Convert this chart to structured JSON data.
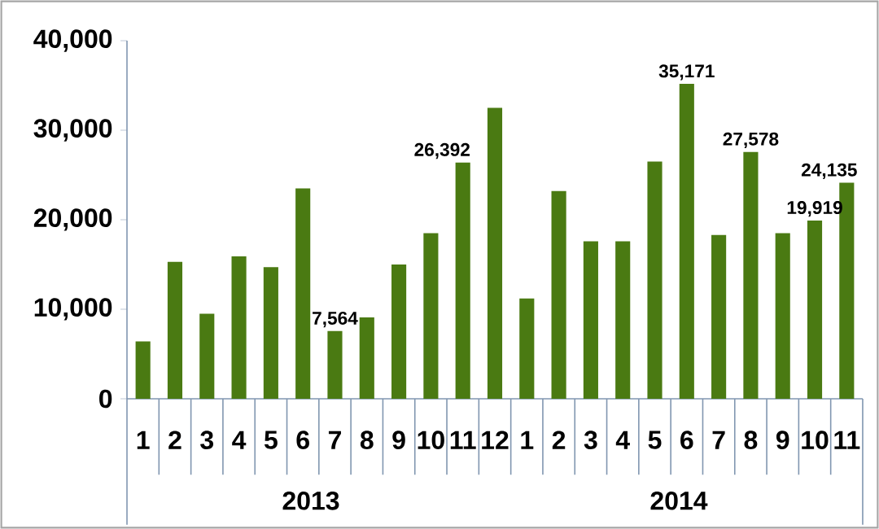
{
  "chart_data": {
    "type": "bar",
    "categories": [
      "1",
      "2",
      "3",
      "4",
      "5",
      "6",
      "7",
      "8",
      "9",
      "10",
      "11",
      "12",
      "1",
      "2",
      "3",
      "4",
      "5",
      "6",
      "7",
      "8",
      "9",
      "10",
      "11"
    ],
    "values": [
      6400,
      15300,
      9500,
      15900,
      14700,
      23500,
      7564,
      9100,
      15000,
      18500,
      26392,
      32500,
      11200,
      23200,
      17600,
      17600,
      26500,
      35171,
      18300,
      27578,
      18500,
      19919,
      24135
    ],
    "value_labels": [
      null,
      null,
      null,
      null,
      null,
      null,
      "7,564",
      null,
      null,
      null,
      "26,392",
      null,
      null,
      null,
      null,
      null,
      null,
      "35,171",
      null,
      "27,578",
      null,
      "19,919",
      "24,135"
    ],
    "color": "#4a7a12",
    "ylim": [
      0,
      40000
    ],
    "yticks": [
      {
        "value": 0,
        "label": "0"
      },
      {
        "value": 10000,
        "label": "10,000"
      },
      {
        "value": 20000,
        "label": "20,000"
      },
      {
        "value": 30000,
        "label": "30,000"
      },
      {
        "value": 40000,
        "label": "40,000"
      }
    ],
    "grid": false,
    "annotations": [
      "2013",
      "2014"
    ]
  }
}
